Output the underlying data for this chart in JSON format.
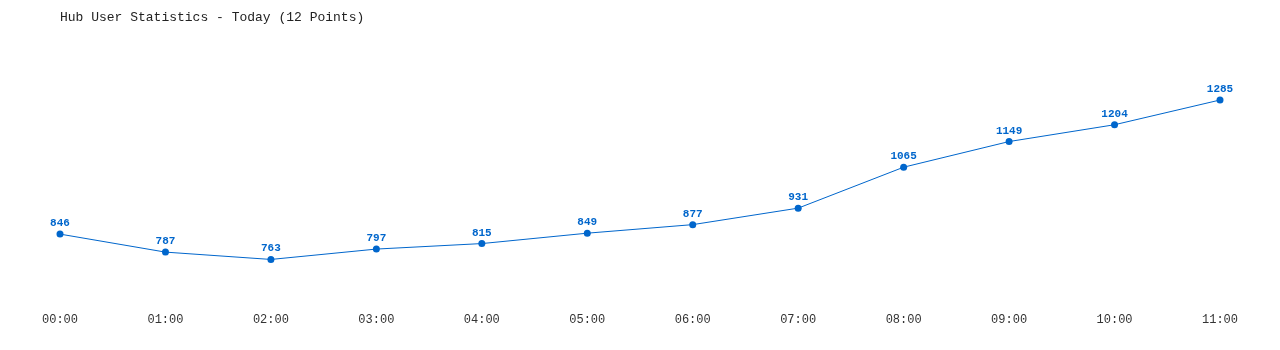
{
  "chart_data": {
    "type": "line",
    "title": "Hub User Statistics - Today (12 Points)",
    "categories": [
      "00:00",
      "01:00",
      "02:00",
      "03:00",
      "04:00",
      "05:00",
      "06:00",
      "07:00",
      "08:00",
      "09:00",
      "10:00",
      "11:00"
    ],
    "series": [
      {
        "color": "#0066cc",
        "values": [
          846,
          787,
          763,
          797,
          815,
          849,
          877,
          931,
          1065,
          1149,
          1204,
          1285
        ]
      }
    ],
    "data_labels": true,
    "marker": "circle",
    "grid": false,
    "legend": false
  }
}
